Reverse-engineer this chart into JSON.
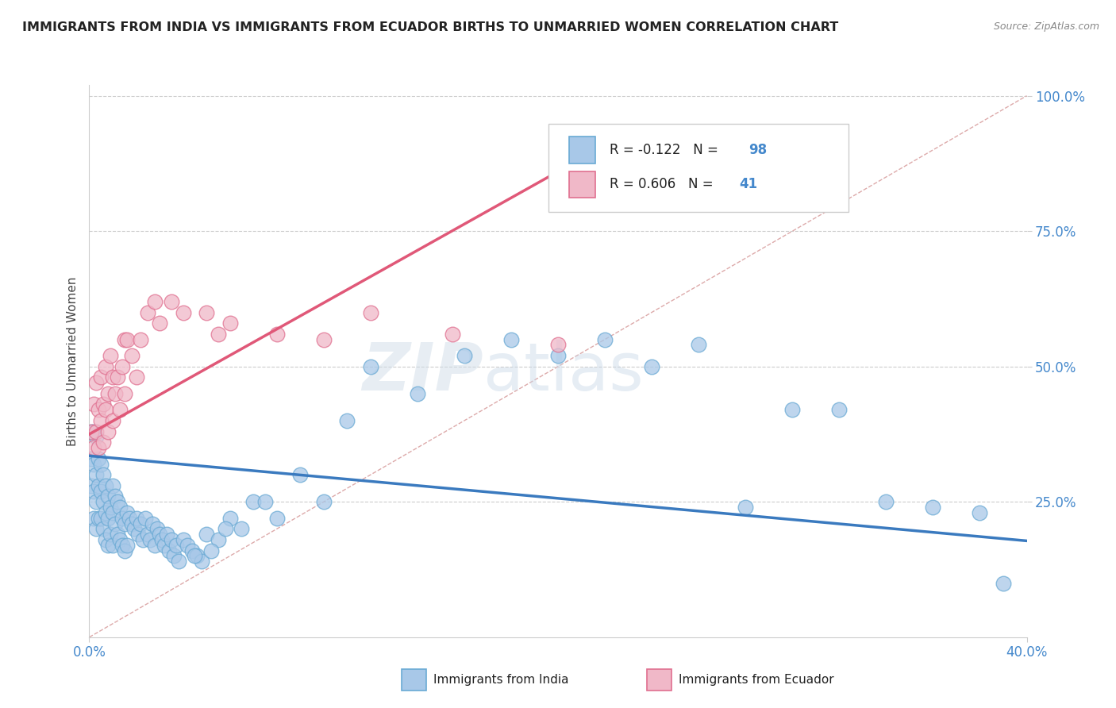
{
  "title": "IMMIGRANTS FROM INDIA VS IMMIGRANTS FROM ECUADOR BIRTHS TO UNMARRIED WOMEN CORRELATION CHART",
  "source": "Source: ZipAtlas.com",
  "ylabel": "Births to Unmarried Women",
  "color_india": "#a8c8e8",
  "color_india_edge": "#6aaad4",
  "color_india_line": "#3a7abf",
  "color_ecuador": "#f0b8c8",
  "color_ecuador_edge": "#e07090",
  "color_ecuador_line": "#e05878",
  "watermark_zip": "ZIP",
  "watermark_atlas": "atlas",
  "india_R": -0.122,
  "india_N": 98,
  "ecuador_R": 0.606,
  "ecuador_N": 41,
  "xlim": [
    0.0,
    0.4
  ],
  "ylim": [
    0.0,
    1.02
  ],
  "india_trend_x0": 0.0,
  "india_trend_y0": 0.335,
  "india_trend_x1": 0.4,
  "india_trend_y1": 0.178,
  "ecuador_trend_x0": 0.0,
  "ecuador_trend_y0": 0.375,
  "ecuador_trend_x1": 0.2,
  "ecuador_trend_y1": 0.86,
  "diag_color": "#ddaaaa",
  "grid_color": "#cccccc",
  "tick_color": "#4488cc",
  "background_color": "#ffffff",
  "india_scatter_x": [
    0.001,
    0.001,
    0.001,
    0.002,
    0.002,
    0.002,
    0.002,
    0.003,
    0.003,
    0.003,
    0.003,
    0.004,
    0.004,
    0.004,
    0.005,
    0.005,
    0.005,
    0.006,
    0.006,
    0.006,
    0.007,
    0.007,
    0.007,
    0.008,
    0.008,
    0.008,
    0.009,
    0.009,
    0.01,
    0.01,
    0.01,
    0.011,
    0.011,
    0.012,
    0.012,
    0.013,
    0.013,
    0.014,
    0.014,
    0.015,
    0.015,
    0.016,
    0.016,
    0.017,
    0.018,
    0.019,
    0.02,
    0.021,
    0.022,
    0.023,
    0.024,
    0.025,
    0.026,
    0.027,
    0.028,
    0.029,
    0.03,
    0.031,
    0.032,
    0.033,
    0.034,
    0.035,
    0.036,
    0.037,
    0.038,
    0.04,
    0.042,
    0.044,
    0.046,
    0.048,
    0.05,
    0.055,
    0.06,
    0.065,
    0.07,
    0.08,
    0.09,
    0.1,
    0.11,
    0.12,
    0.14,
    0.16,
    0.18,
    0.2,
    0.22,
    0.24,
    0.26,
    0.28,
    0.3,
    0.34,
    0.36,
    0.38,
    0.39,
    0.32,
    0.045,
    0.052,
    0.058,
    0.075
  ],
  "india_scatter_y": [
    0.38,
    0.33,
    0.28,
    0.38,
    0.32,
    0.27,
    0.22,
    0.37,
    0.3,
    0.25,
    0.2,
    0.33,
    0.28,
    0.22,
    0.32,
    0.27,
    0.22,
    0.3,
    0.25,
    0.2,
    0.28,
    0.23,
    0.18,
    0.26,
    0.22,
    0.17,
    0.24,
    0.19,
    0.28,
    0.23,
    0.17,
    0.26,
    0.21,
    0.25,
    0.19,
    0.24,
    0.18,
    0.22,
    0.17,
    0.21,
    0.16,
    0.23,
    0.17,
    0.22,
    0.21,
    0.2,
    0.22,
    0.19,
    0.21,
    0.18,
    0.22,
    0.19,
    0.18,
    0.21,
    0.17,
    0.2,
    0.19,
    0.18,
    0.17,
    0.19,
    0.16,
    0.18,
    0.15,
    0.17,
    0.14,
    0.18,
    0.17,
    0.16,
    0.15,
    0.14,
    0.19,
    0.18,
    0.22,
    0.2,
    0.25,
    0.22,
    0.3,
    0.25,
    0.4,
    0.5,
    0.45,
    0.52,
    0.55,
    0.52,
    0.55,
    0.5,
    0.54,
    0.24,
    0.42,
    0.25,
    0.24,
    0.23,
    0.1,
    0.42,
    0.15,
    0.16,
    0.2,
    0.25
  ],
  "ecuador_scatter_x": [
    0.001,
    0.002,
    0.002,
    0.003,
    0.003,
    0.004,
    0.004,
    0.005,
    0.005,
    0.006,
    0.006,
    0.007,
    0.007,
    0.008,
    0.008,
    0.009,
    0.01,
    0.01,
    0.011,
    0.012,
    0.013,
    0.014,
    0.015,
    0.015,
    0.016,
    0.018,
    0.02,
    0.022,
    0.025,
    0.028,
    0.03,
    0.035,
    0.04,
    0.05,
    0.055,
    0.06,
    0.08,
    0.1,
    0.12,
    0.155,
    0.2
  ],
  "ecuador_scatter_y": [
    0.38,
    0.43,
    0.35,
    0.47,
    0.38,
    0.42,
    0.35,
    0.48,
    0.4,
    0.43,
    0.36,
    0.5,
    0.42,
    0.45,
    0.38,
    0.52,
    0.48,
    0.4,
    0.45,
    0.48,
    0.42,
    0.5,
    0.55,
    0.45,
    0.55,
    0.52,
    0.48,
    0.55,
    0.6,
    0.62,
    0.58,
    0.62,
    0.6,
    0.6,
    0.56,
    0.58,
    0.56,
    0.55,
    0.6,
    0.56,
    0.54
  ]
}
